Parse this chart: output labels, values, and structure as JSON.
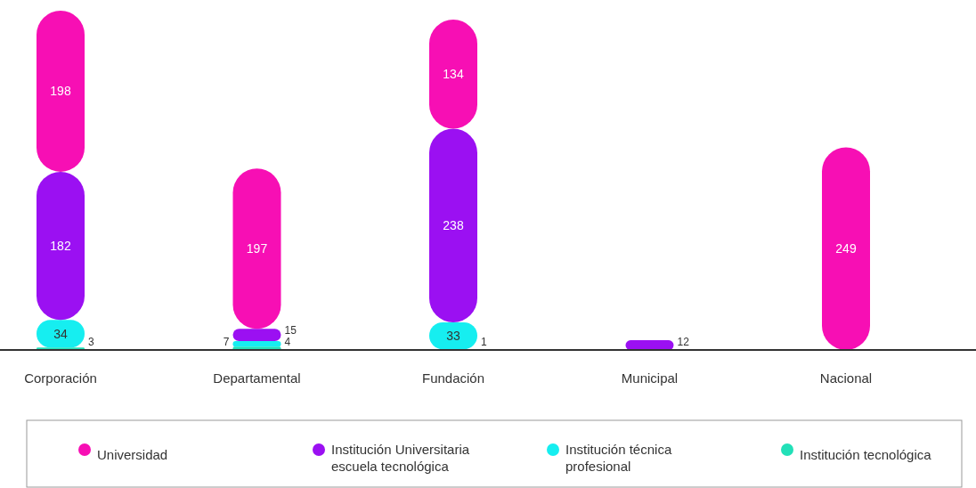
{
  "chart_data": {
    "type": "bar",
    "stacked": true,
    "categories": [
      "Corporación",
      "Departamental",
      "Fundación",
      "Municipal",
      "Nacional"
    ],
    "series": [
      {
        "name": "Institución tecnológica",
        "color": "#22e0b8",
        "values": [
          3,
          4,
          1,
          null,
          null
        ]
      },
      {
        "name": "Institución técnica profesional",
        "color": "#16eef0",
        "values": [
          34,
          7,
          33,
          null,
          null
        ]
      },
      {
        "name": "Institución Universitaria escuela tecnológica",
        "color": "#9b10f2",
        "values": [
          182,
          15,
          238,
          12,
          null
        ]
      },
      {
        "name": "Universidad",
        "color": "#f70fb4",
        "values": [
          198,
          197,
          134,
          null,
          249
        ]
      }
    ],
    "ylim": [
      0,
      417
    ],
    "tick_labels": "x",
    "data_labels": true,
    "legend": "bottom"
  }
}
